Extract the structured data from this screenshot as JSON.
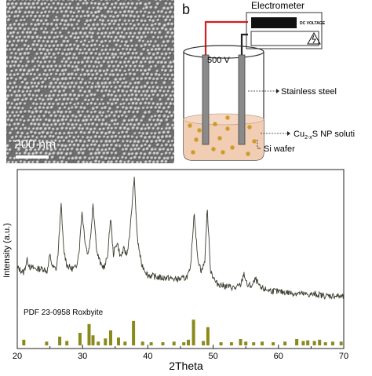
{
  "panel_a": {
    "label": "",
    "scale_text": "200 nm"
  },
  "panel_b": {
    "label": "b",
    "meter_title": "Electrometer",
    "meter_sub": "DC VOLTAGE",
    "voltage": "500 V",
    "annotations": {
      "stainless": "Stainless steel",
      "solution_prefix": "Cu",
      "solution_sub": "2-x",
      "solution_suffix": "S NP soluti",
      "wafer": "Si wafer"
    },
    "colors": {
      "positive_wire": "#d21f1f",
      "negative_wire": "#222222",
      "liquid": "#f1cdb3",
      "particle": "#c8961a"
    }
  },
  "chart_data": {
    "type": "line",
    "title": "",
    "xlabel": "2Theta",
    "ylabel": "Intensity (a.u.)",
    "xlim": [
      20,
      70
    ],
    "x_ticks": [
      20,
      30,
      40,
      50,
      60,
      70
    ],
    "grid": false,
    "series": [
      {
        "name": "",
        "color": "#3a3d2f",
        "x": [
          20,
          21,
          21.5,
          22,
          23,
          24,
          24.6,
          25,
          25.4,
          26,
          26.3,
          26.7,
          27.1,
          27.6,
          28.3,
          29,
          29.5,
          29.9,
          30.4,
          30.8,
          31.2,
          31.6,
          32.2,
          32.8,
          33.4,
          33.9,
          34.3,
          34.7,
          35.3,
          35.8,
          36.3,
          36.8,
          37.3,
          37.9,
          38.4,
          39,
          40,
          41,
          42,
          43,
          44,
          45,
          45.8,
          46.5,
          47.1,
          47.6,
          48.2,
          48.7,
          49.1,
          49.6,
          50.4,
          51.5,
          52.5,
          53.5,
          54.3,
          54.7,
          55.2,
          56,
          56.5,
          57.2,
          58,
          59,
          60,
          61,
          62,
          63,
          64,
          65,
          66,
          67,
          68,
          69,
          70
        ],
        "values": [
          30,
          26,
          36,
          30,
          29,
          29,
          27,
          40,
          30,
          29,
          44,
          80,
          44,
          32,
          29,
          30,
          44,
          74,
          50,
          40,
          52,
          80,
          42,
          32,
          30,
          42,
          70,
          40,
          50,
          38,
          44,
          40,
          60,
          100,
          52,
          33,
          24,
          23,
          22,
          22,
          21,
          21,
          22,
          27,
          74,
          38,
          27,
          34,
          76,
          28,
          18,
          16,
          15,
          14,
          17,
          26,
          16,
          16,
          21,
          14,
          13,
          12,
          11,
          11,
          10,
          10,
          9,
          9,
          9,
          8,
          8,
          8,
          7
        ]
      }
    ],
    "reference": {
      "name": "PDF 23-0958 Roxbyite",
      "color": "#8a8a1c",
      "x": [
        21.0,
        24.5,
        26.5,
        27.6,
        29.6,
        31.0,
        31.6,
        32.4,
        33.5,
        34.3,
        35.5,
        36.5,
        37.8,
        39.2,
        40.5,
        42.3,
        44.0,
        45.5,
        46.2,
        47.0,
        48.5,
        49.2,
        51.2,
        52.8,
        54.2,
        55.0,
        56.2,
        57.5,
        59.2,
        61.0,
        62.8,
        63.8,
        64.5,
        65.5,
        66.3,
        67.2,
        68.3,
        69.6
      ],
      "values": [
        18,
        12,
        28,
        14,
        40,
        68,
        32,
        12,
        22,
        48,
        25,
        12,
        78,
        12,
        10,
        10,
        12,
        10,
        18,
        82,
        14,
        58,
        10,
        10,
        20,
        12,
        10,
        12,
        10,
        12,
        20,
        14,
        16,
        14,
        18,
        10,
        12,
        12
      ]
    }
  }
}
